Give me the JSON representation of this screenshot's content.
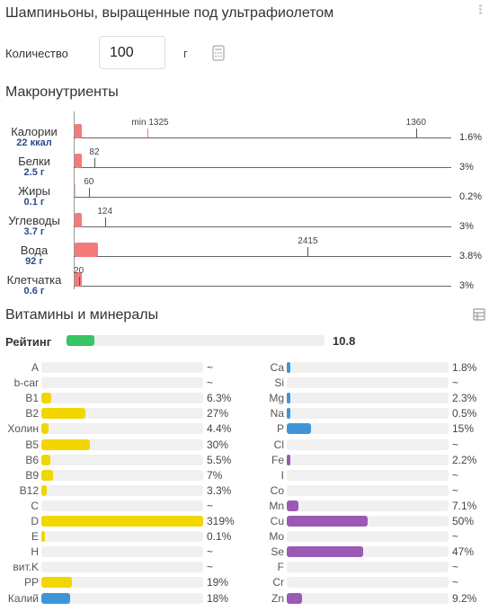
{
  "title": "Шампиньоны, выращенные под ультрафиолетом",
  "quantity": {
    "label": "Количество",
    "value": "100",
    "unit": "г"
  },
  "macros": {
    "title": "Макронутриенты",
    "scale_max": 1500,
    "min_label": "min 1325",
    "items": [
      {
        "name": "Калории",
        "amount": "22 ккал",
        "value": 22,
        "target": 1360,
        "target_label": "1360",
        "pct": "1.6%"
      },
      {
        "name": "Белки",
        "amount": "2.5 г",
        "value": 2.5,
        "target": 82,
        "target_label": "82",
        "pct": "3%"
      },
      {
        "name": "Жиры",
        "amount": "0.1 г",
        "value": 0.1,
        "target": 60,
        "target_label": "60",
        "pct": "0.2%"
      },
      {
        "name": "Углеводы",
        "amount": "3.7 г",
        "value": 3.7,
        "target": 124,
        "target_label": "124",
        "pct": "3%"
      },
      {
        "name": "Вода",
        "amount": "92 г",
        "value": 92,
        "target": 2415,
        "target_label": "2415",
        "pct": "3.8%"
      },
      {
        "name": "Клетчатка",
        "amount": "0.6 г",
        "value": 0.6,
        "target": 20,
        "target_label": "20",
        "pct": "3%"
      }
    ]
  },
  "vitamins": {
    "title": "Витамины и минералы",
    "rating": {
      "label": "Рейтинг",
      "value": "10.8",
      "fraction": 0.108
    },
    "colors": {
      "vitamin": "#f2d600",
      "mineral_blue": "#3d95d8",
      "mineral_purple": "#9b59b6",
      "rating": "#39c466"
    },
    "left": [
      {
        "name": "A",
        "pct": "~",
        "fraction": 0,
        "color": "#f2d600"
      },
      {
        "name": "b-car",
        "pct": "~",
        "fraction": 0,
        "color": "#f2d600"
      },
      {
        "name": "B1",
        "pct": "6.3%",
        "fraction": 0.063,
        "color": "#f2d600"
      },
      {
        "name": "B2",
        "pct": "27%",
        "fraction": 0.27,
        "color": "#f2d600"
      },
      {
        "name": "Холин",
        "pct": "4.4%",
        "fraction": 0.044,
        "color": "#f2d600"
      },
      {
        "name": "B5",
        "pct": "30%",
        "fraction": 0.3,
        "color": "#f2d600"
      },
      {
        "name": "B6",
        "pct": "5.5%",
        "fraction": 0.055,
        "color": "#f2d600"
      },
      {
        "name": "B9",
        "pct": "7%",
        "fraction": 0.07,
        "color": "#f2d600"
      },
      {
        "name": "B12",
        "pct": "3.3%",
        "fraction": 0.033,
        "color": "#f2d600"
      },
      {
        "name": "C",
        "pct": "~",
        "fraction": 0,
        "color": "#f2d600"
      },
      {
        "name": "D",
        "pct": "319%",
        "fraction": 1,
        "color": "#f2d600"
      },
      {
        "name": "E",
        "pct": "0.1%",
        "fraction": 0.001,
        "color": "#f2d600"
      },
      {
        "name": "H",
        "pct": "~",
        "fraction": 0,
        "color": "#f2d600"
      },
      {
        "name": "вит.K",
        "pct": "~",
        "fraction": 0,
        "color": "#f2d600"
      },
      {
        "name": "PP",
        "pct": "19%",
        "fraction": 0.19,
        "color": "#f2d600"
      },
      {
        "name": "Калий",
        "pct": "18%",
        "fraction": 0.18,
        "color": "#3d95d8"
      }
    ],
    "right": [
      {
        "name": "Ca",
        "pct": "1.8%",
        "fraction": 0.018,
        "color": "#3d95d8"
      },
      {
        "name": "Si",
        "pct": "~",
        "fraction": 0,
        "color": "#3d95d8"
      },
      {
        "name": "Mg",
        "pct": "2.3%",
        "fraction": 0.023,
        "color": "#3d95d8"
      },
      {
        "name": "Na",
        "pct": "0.5%",
        "fraction": 0.005,
        "color": "#3d95d8"
      },
      {
        "name": "P",
        "pct": "15%",
        "fraction": 0.15,
        "color": "#3d95d8"
      },
      {
        "name": "Cl",
        "pct": "~",
        "fraction": 0,
        "color": "#3d95d8"
      },
      {
        "name": "Fe",
        "pct": "2.2%",
        "fraction": 0.022,
        "color": "#9b59b6"
      },
      {
        "name": "I",
        "pct": "~",
        "fraction": 0,
        "color": "#9b59b6"
      },
      {
        "name": "Co",
        "pct": "~",
        "fraction": 0,
        "color": "#9b59b6"
      },
      {
        "name": "Mn",
        "pct": "7.1%",
        "fraction": 0.071,
        "color": "#9b59b6"
      },
      {
        "name": "Cu",
        "pct": "50%",
        "fraction": 0.5,
        "color": "#9b59b6"
      },
      {
        "name": "Mo",
        "pct": "~",
        "fraction": 0,
        "color": "#9b59b6"
      },
      {
        "name": "Se",
        "pct": "47%",
        "fraction": 0.47,
        "color": "#9b59b6"
      },
      {
        "name": "F",
        "pct": "~",
        "fraction": 0,
        "color": "#9b59b6"
      },
      {
        "name": "Cr",
        "pct": "~",
        "fraction": 0,
        "color": "#9b59b6"
      },
      {
        "name": "Zn",
        "pct": "9.2%",
        "fraction": 0.092,
        "color": "#9b59b6"
      }
    ]
  }
}
